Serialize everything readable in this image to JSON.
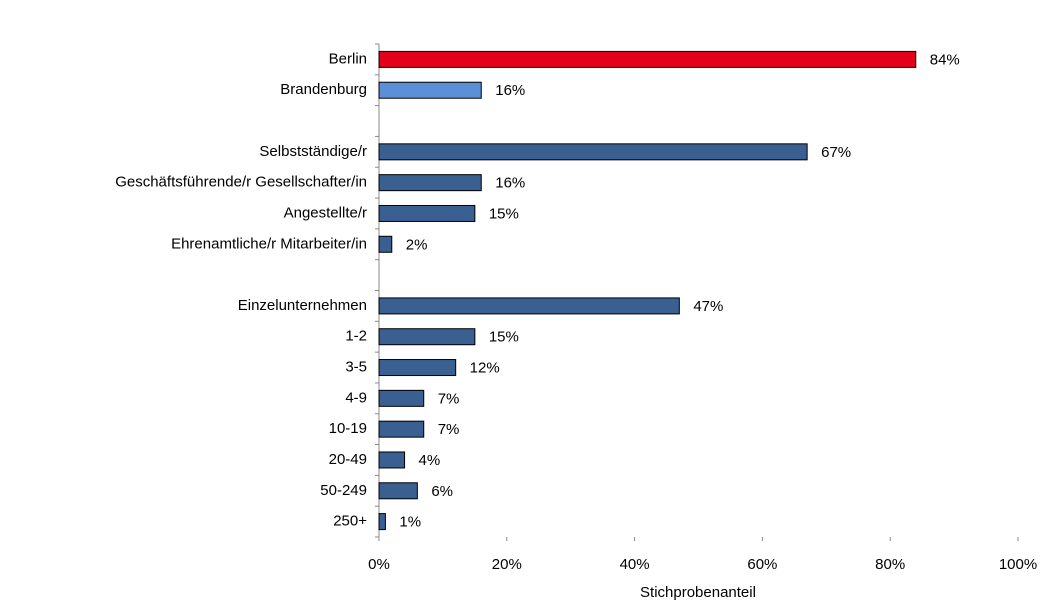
{
  "chart_data": {
    "type": "barh",
    "categories": [
      "Berlin",
      "Brandenburg",
      null,
      "Selbstständige/r",
      "Geschäftsführende/r Gesellschafter/in",
      "Angestellte/r",
      "Ehrenamtliche/r Mitarbeiter/in",
      null,
      "Einzelunternehmen",
      "1-2",
      "3-5",
      "4-9",
      "10-19",
      "20-49",
      "50-249",
      "250+"
    ],
    "values": [
      84,
      16,
      null,
      67,
      16,
      15,
      2,
      null,
      47,
      15,
      12,
      7,
      7,
      4,
      6,
      1
    ],
    "value_labels": [
      "84%",
      "16%",
      null,
      "67%",
      "16%",
      "15%",
      "2%",
      null,
      "47%",
      "15%",
      "12%",
      "7%",
      "7%",
      "4%",
      "6%",
      "1%"
    ],
    "colors": [
      "#e2001a",
      "#5b8fd6",
      null,
      "#3a5f91",
      "#3a5f91",
      "#3a5f91",
      "#3a5f91",
      null,
      "#3a5f91",
      "#3a5f91",
      "#3a5f91",
      "#3a5f91",
      "#3a5f91",
      "#3a5f91",
      "#3a5f91",
      "#3a5f91"
    ],
    "xlabel": "Stichprobenanteil",
    "xlim": [
      0,
      100
    ],
    "xticks": [
      {
        "value": 0,
        "label": "0%"
      },
      {
        "value": 20,
        "label": "20%"
      },
      {
        "value": 40,
        "label": "40%"
      },
      {
        "value": 60,
        "label": "60%"
      },
      {
        "value": 80,
        "label": "80%"
      },
      {
        "value": 100,
        "label": "100%"
      }
    ],
    "grid": false
  }
}
